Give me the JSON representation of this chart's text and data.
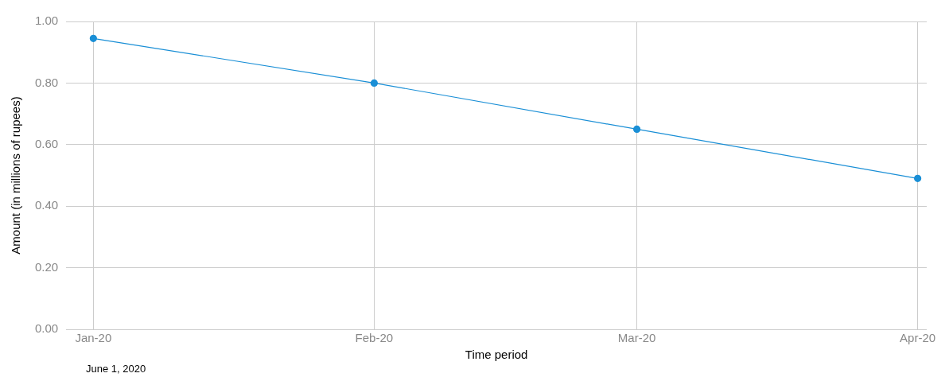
{
  "chart_data": {
    "type": "line",
    "xlabel": "Time period",
    "ylabel": "Amount (in millions of rupees)",
    "x": [
      "2020-01-01",
      "2020-02-01",
      "2020-03-01",
      "2020-04-01"
    ],
    "series": [
      {
        "color": "#1a8fd6",
        "values": [
          0.945,
          0.8,
          0.65,
          0.49
        ]
      }
    ],
    "xlim": [
      "2019-12-29",
      "2020-04-02"
    ],
    "xticks": [
      {
        "value": "2020-01-01",
        "label": "Jan-20"
      },
      {
        "value": "2020-02-01",
        "label": "Feb-20"
      },
      {
        "value": "2020-03-01",
        "label": "Mar-20"
      },
      {
        "value": "2020-04-01",
        "label": "Apr-20"
      }
    ],
    "ylim": [
      0,
      1.0
    ],
    "yticks": [
      {
        "value": 0,
        "label": "0.00"
      },
      {
        "value": 0.2,
        "label": "0.20"
      },
      {
        "value": 0.4,
        "label": "0.40"
      },
      {
        "value": 0.6,
        "label": "0.60"
      },
      {
        "value": 0.8,
        "label": "0.80"
      },
      {
        "value": 1.0,
        "label": "1.00"
      }
    ],
    "grid": true,
    "legend": false,
    "marker": "circle",
    "line_style": "solid",
    "annotations": [
      "June 1, 2020"
    ]
  }
}
